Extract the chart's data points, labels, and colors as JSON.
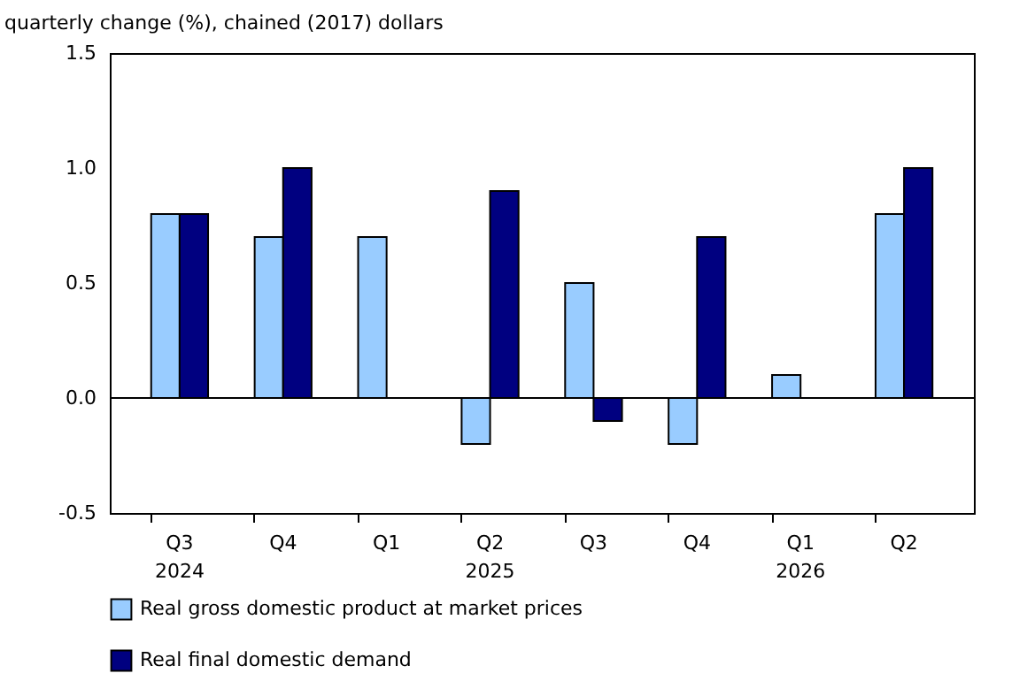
{
  "chart_data": {
    "type": "bar",
    "ylabel": "quarterly change (%), chained (2017) dollars",
    "categories": [
      "Q3\n2024",
      "Q4",
      "Q1",
      "Q2\n2025",
      "Q3",
      "Q4",
      "Q1\n2026",
      "Q2"
    ],
    "series": [
      {
        "name": "Real gross domestic product at market prices",
        "color": "#99ccff",
        "values": [
          0.8,
          0.7,
          0.7,
          -0.2,
          0.5,
          -0.2,
          0.1,
          0.8
        ]
      },
      {
        "name": "Real final domestic demand",
        "color": "#000080",
        "values": [
          0.8,
          1.0,
          null,
          0.9,
          -0.1,
          0.7,
          null,
          1.0
        ]
      }
    ],
    "ylim": [
      -0.5,
      1.5
    ],
    "yticks": [
      {
        "value": -0.5,
        "label": "-0.5"
      },
      {
        "value": 0,
        "label": "0.0"
      },
      {
        "value": 0.5,
        "label": "0.5"
      },
      {
        "value": 1,
        "label": "1.0"
      },
      1.5
    ],
    "ref_lines": [
      {
        "axis": "y",
        "value": 0
      }
    ],
    "grid": false,
    "legend": "bottom"
  }
}
